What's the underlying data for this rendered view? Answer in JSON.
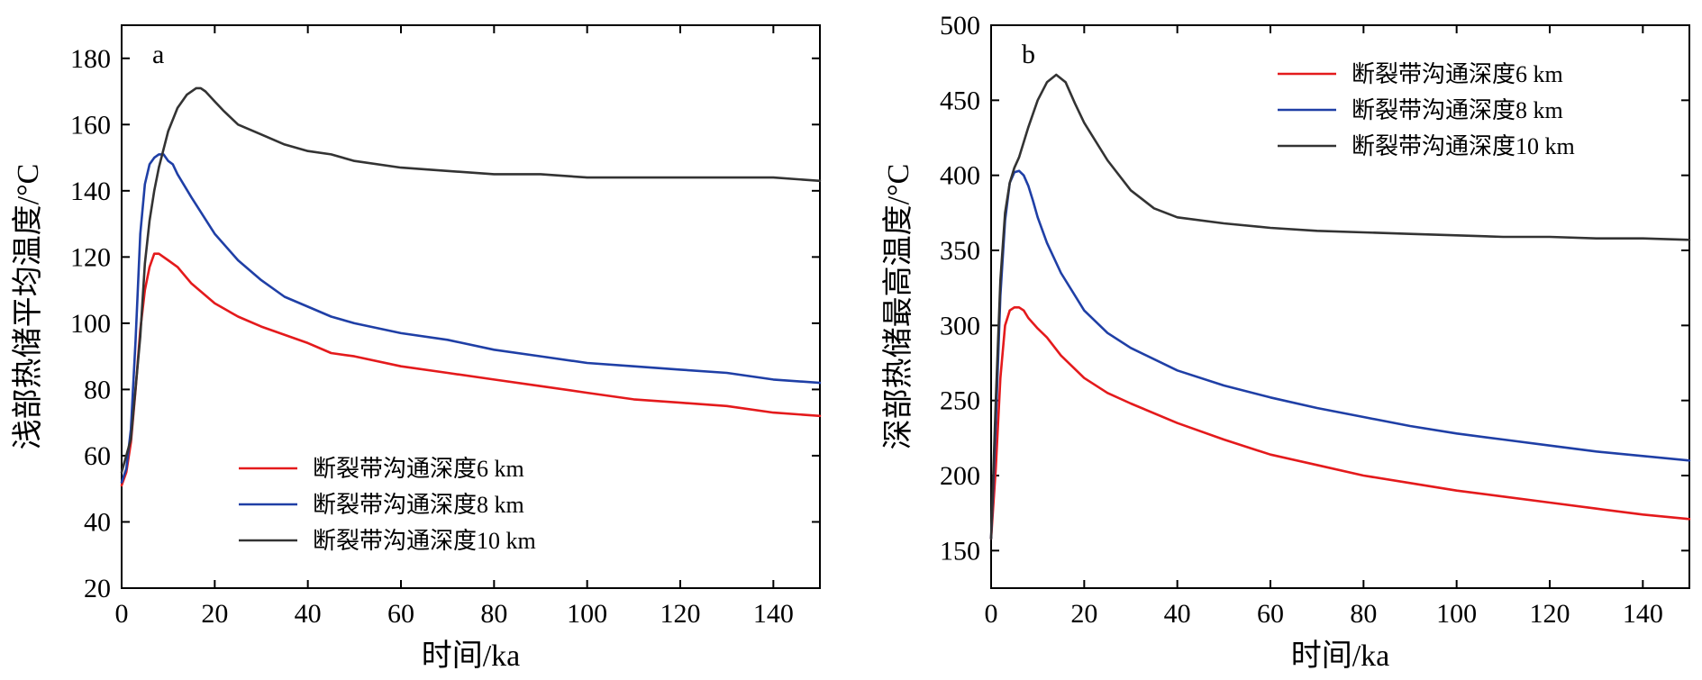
{
  "chart_data": [
    {
      "type": "line",
      "panel_label": "a",
      "xlabel": "时间/ka",
      "ylabel": "浅部热储平均温度/°C",
      "xlim": [
        0,
        150
      ],
      "ylim": [
        20,
        190
      ],
      "xticks": [
        0,
        20,
        40,
        60,
        80,
        100,
        120,
        140
      ],
      "yticks": [
        20,
        40,
        60,
        80,
        100,
        120,
        140,
        160,
        180
      ],
      "legend_position": "bottom-center",
      "series": [
        {
          "name": "断裂带沟通深度6 km",
          "color": "#e41a1c",
          "x": [
            0,
            1,
            2,
            3,
            4,
            5,
            6,
            7,
            8,
            10,
            12,
            15,
            20,
            25,
            30,
            40,
            45,
            50,
            60,
            70,
            80,
            90,
            100,
            110,
            120,
            130,
            140,
            150
          ],
          "y": [
            51,
            55,
            64,
            80,
            98,
            110,
            117,
            121,
            121,
            119,
            117,
            112,
            106,
            102,
            99,
            94,
            91,
            90,
            87,
            85,
            83,
            81,
            79,
            77,
            76,
            75,
            73,
            72
          ]
        },
        {
          "name": "断裂带沟通深度8 km",
          "color": "#1f3fa6",
          "x": [
            0,
            1,
            2,
            3,
            4,
            5,
            6,
            7,
            8,
            9,
            10,
            11,
            12,
            15,
            20,
            25,
            30,
            35,
            40,
            45,
            50,
            60,
            70,
            80,
            90,
            100,
            110,
            120,
            130,
            140,
            150
          ],
          "y": [
            52,
            56,
            68,
            95,
            127,
            142,
            148,
            150,
            151,
            151,
            149,
            148,
            145,
            138,
            127,
            119,
            113,
            108,
            105,
            102,
            100,
            97,
            95,
            92,
            90,
            88,
            87,
            86,
            85,
            83,
            82
          ]
        },
        {
          "name": "断裂带沟通深度10 km",
          "color": "#333333",
          "x": [
            0,
            2,
            4,
            5,
            6,
            7,
            8,
            10,
            12,
            14,
            16,
            17,
            18,
            20,
            22,
            25,
            30,
            35,
            40,
            45,
            50,
            60,
            70,
            80,
            90,
            100,
            110,
            120,
            130,
            140,
            150
          ],
          "y": [
            55,
            65,
            96,
            118,
            131,
            140,
            147,
            158,
            165,
            169,
            171,
            171,
            170,
            167,
            164,
            160,
            157,
            154,
            152,
            151,
            149,
            147,
            146,
            145,
            145,
            144,
            144,
            144,
            144,
            144,
            143
          ]
        }
      ]
    },
    {
      "type": "line",
      "panel_label": "b",
      "xlabel": "时间/ka",
      "ylabel": "深部热储最高温度/°C",
      "xlim": [
        0,
        150
      ],
      "ylim": [
        125,
        500
      ],
      "xticks": [
        0,
        20,
        40,
        60,
        80,
        100,
        120,
        140
      ],
      "yticks": [
        150,
        200,
        250,
        300,
        350,
        400,
        450,
        500
      ],
      "legend_position": "top-right",
      "series": [
        {
          "name": "断裂带沟通深度6 km",
          "color": "#e41a1c",
          "x": [
            0,
            1,
            2,
            3,
            4,
            5,
            6,
            7,
            8,
            10,
            12,
            15,
            20,
            25,
            30,
            40,
            50,
            60,
            70,
            80,
            90,
            100,
            110,
            120,
            130,
            140,
            150
          ],
          "y": [
            158,
            205,
            265,
            300,
            310,
            312,
            312,
            310,
            305,
            298,
            292,
            280,
            265,
            255,
            248,
            235,
            224,
            214,
            207,
            200,
            195,
            190,
            186,
            182,
            178,
            174,
            171
          ]
        },
        {
          "name": "断裂带沟通深度8 km",
          "color": "#1f3fa6",
          "x": [
            0,
            1,
            2,
            3,
            4,
            5,
            6,
            7,
            8,
            9,
            10,
            12,
            15,
            20,
            25,
            30,
            40,
            50,
            60,
            70,
            80,
            90,
            100,
            110,
            120,
            130,
            140,
            150
          ],
          "y": [
            158,
            235,
            320,
            370,
            395,
            402,
            403,
            400,
            393,
            383,
            372,
            355,
            335,
            310,
            295,
            285,
            270,
            260,
            252,
            245,
            239,
            233,
            228,
            224,
            220,
            216,
            213,
            210
          ]
        },
        {
          "name": "断裂带沟通深度10 km",
          "color": "#333333",
          "x": [
            0,
            1,
            2,
            3,
            4,
            5,
            6,
            8,
            10,
            12,
            14,
            16,
            18,
            20,
            25,
            30,
            35,
            40,
            50,
            60,
            70,
            80,
            90,
            100,
            110,
            120,
            130,
            140,
            150
          ],
          "y": [
            158,
            250,
            330,
            375,
            395,
            405,
            412,
            432,
            450,
            462,
            467,
            462,
            448,
            435,
            410,
            390,
            378,
            372,
            368,
            365,
            363,
            362,
            361,
            360,
            359,
            359,
            358,
            358,
            357
          ]
        }
      ]
    }
  ]
}
